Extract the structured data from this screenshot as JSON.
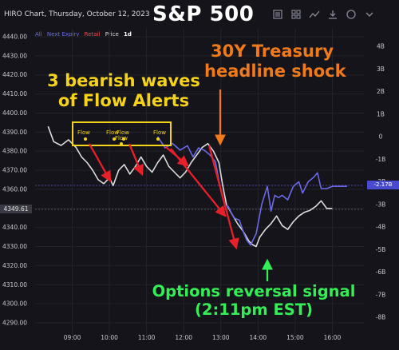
{
  "header": {
    "title": "HIRO Chart, Thursday, October 12, 2023",
    "headline": "S&P 500",
    "icons": [
      "list-icon",
      "grid-icon",
      "trend-icon",
      "download-icon",
      "circle-icon",
      "chevron-down-icon"
    ]
  },
  "legend": {
    "all": "All",
    "next_expiry": "Next Expiry",
    "retail": "Retail",
    "price": "Price",
    "timeframe": "1d"
  },
  "price_tag": "4349.61",
  "flow_tag": "-2.17B",
  "annotations": {
    "waves_line1": "3 bearish waves",
    "waves_line2": "of Flow Alerts",
    "treasury_line1": "30Y Treasury",
    "treasury_line2": "headline shock",
    "options_line1": "Options reversal signal",
    "options_line2": "(2:11pm EST)"
  },
  "flow_labels": [
    "Flow",
    "Flow",
    "Flow",
    "Flow",
    "Flow"
  ],
  "colors": {
    "background": "#14141a",
    "price_line": "#dcdcdc",
    "flow_line": "#6a6ae8",
    "arrow_red": "#e8202a",
    "box_yellow": "#f5d31a",
    "arrow_orange": "#f07a1a",
    "arrow_green": "#33ef55"
  },
  "chart_data": {
    "type": "line",
    "left_axis": {
      "ticks": [
        "4440.00",
        "4430.00",
        "4420.00",
        "4410.00",
        "4400.00",
        "4390.00",
        "4380.00",
        "4370.00",
        "4360.00",
        "4350.00",
        "4340.00",
        "4330.00",
        "4320.00",
        "4310.00",
        "4300.00",
        "4290.00"
      ],
      "range": [
        4285,
        4445
      ]
    },
    "right_axis": {
      "ticks": [
        "4B",
        "3B",
        "2B",
        "1B",
        "0",
        "-1B",
        "-2B",
        "-3B",
        "-4B",
        "-5B",
        "-6B",
        "-7B",
        "-8B"
      ],
      "range": [
        -8.8,
        4.6
      ]
    },
    "x_ticks": [
      "09:00",
      "10:00",
      "11:00",
      "12:00",
      "13:00",
      "14:00",
      "15:00",
      "16:00"
    ],
    "series": [
      {
        "name": "Price",
        "axis": "left",
        "points": [
          [
            8.35,
            4393
          ],
          [
            8.5,
            4385
          ],
          [
            8.7,
            4383
          ],
          [
            8.9,
            4386
          ],
          [
            9.1,
            4382
          ],
          [
            9.25,
            4377
          ],
          [
            9.4,
            4374
          ],
          [
            9.55,
            4370
          ],
          [
            9.7,
            4365
          ],
          [
            9.85,
            4363
          ],
          [
            10.0,
            4366
          ],
          [
            10.1,
            4362
          ],
          [
            10.25,
            4370
          ],
          [
            10.4,
            4373
          ],
          [
            10.55,
            4368
          ],
          [
            10.7,
            4372
          ],
          [
            10.85,
            4377
          ],
          [
            11.0,
            4372
          ],
          [
            11.15,
            4369
          ],
          [
            11.3,
            4374
          ],
          [
            11.45,
            4378
          ],
          [
            11.6,
            4372
          ],
          [
            11.75,
            4369
          ],
          [
            11.9,
            4366
          ],
          [
            12.05,
            4369
          ],
          [
            12.2,
            4374
          ],
          [
            12.35,
            4378
          ],
          [
            12.5,
            4382
          ],
          [
            12.65,
            4384
          ],
          [
            12.8,
            4380
          ],
          [
            12.95,
            4374
          ],
          [
            13.05,
            4362
          ],
          [
            13.15,
            4352
          ],
          [
            13.3,
            4347
          ],
          [
            13.45,
            4342
          ],
          [
            13.6,
            4338
          ],
          [
            13.75,
            4333
          ],
          [
            13.85,
            4331
          ],
          [
            13.95,
            4330
          ],
          [
            14.05,
            4335
          ],
          [
            14.2,
            4339
          ],
          [
            14.35,
            4342
          ],
          [
            14.5,
            4346
          ],
          [
            14.65,
            4341
          ],
          [
            14.8,
            4339
          ],
          [
            14.95,
            4343
          ],
          [
            15.1,
            4346
          ],
          [
            15.25,
            4348
          ],
          [
            15.4,
            4349
          ],
          [
            15.55,
            4351
          ],
          [
            15.7,
            4354
          ],
          [
            15.85,
            4350
          ],
          [
            16.0,
            4350
          ]
        ]
      },
      {
        "name": "Next Expiry",
        "axis": "right",
        "points": [
          [
            11.3,
            0.0
          ],
          [
            11.5,
            -0.5
          ],
          [
            11.7,
            -0.3
          ],
          [
            11.9,
            -0.6
          ],
          [
            12.1,
            -0.4
          ],
          [
            12.25,
            -0.9
          ],
          [
            12.4,
            -0.5
          ],
          [
            12.55,
            -0.6
          ],
          [
            12.7,
            -0.8
          ],
          [
            12.85,
            -1.1
          ],
          [
            13.0,
            -2.4
          ],
          [
            13.1,
            -3.0
          ],
          [
            13.2,
            -3.1
          ],
          [
            13.35,
            -3.6
          ],
          [
            13.5,
            -3.7
          ],
          [
            13.6,
            -4.2
          ],
          [
            13.7,
            -4.6
          ],
          [
            13.8,
            -4.8
          ],
          [
            13.95,
            -4.3
          ],
          [
            14.1,
            -3.0
          ],
          [
            14.25,
            -2.2
          ],
          [
            14.35,
            -3.3
          ],
          [
            14.45,
            -2.6
          ],
          [
            14.55,
            -2.7
          ],
          [
            14.65,
            -2.6
          ],
          [
            14.8,
            -2.8
          ],
          [
            14.95,
            -2.2
          ],
          [
            15.1,
            -2.0
          ],
          [
            15.2,
            -2.5
          ],
          [
            15.35,
            -2.0
          ],
          [
            15.5,
            -1.8
          ],
          [
            15.6,
            -1.6
          ],
          [
            15.7,
            -2.3
          ],
          [
            15.85,
            -2.3
          ],
          [
            16.0,
            -2.2
          ],
          [
            16.4,
            -2.2
          ]
        ]
      }
    ]
  }
}
